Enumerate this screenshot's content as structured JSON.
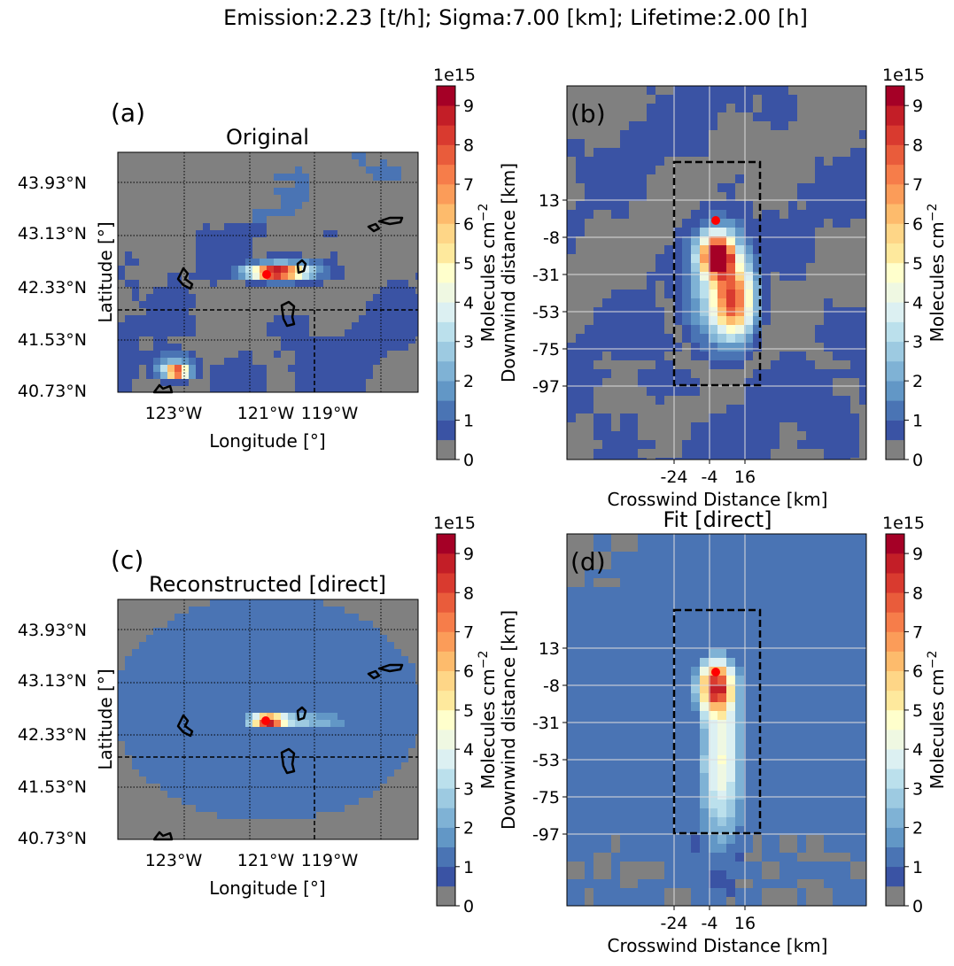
{
  "chart_data": {
    "type": "heatmap",
    "suptitle": "Emission:2.23 [t/h]; Sigma:7.00 [km]; Lifetime:2.00 [h]",
    "colorbar": {
      "label": "Molecules cm",
      "label_exp": "−2",
      "multiplier": "1e15",
      "ticks": [
        "0",
        "1",
        "2",
        "3",
        "4",
        "5",
        "6",
        "7",
        "8",
        "9"
      ],
      "range": [
        0,
        9.5
      ],
      "step": 0.5,
      "colors": [
        "#808080",
        "#3a53a4",
        "#4a74b4",
        "#6297c6",
        "#7fb2d5",
        "#9dcae1",
        "#bbe0ec",
        "#dcf0f2",
        "#eff8e2",
        "#ffffcc",
        "#fee99d",
        "#fed687",
        "#fdbb6c",
        "#fb9c59",
        "#f67d4a",
        "#e95c3b",
        "#d93a2f",
        "#c31e27",
        "#a50026"
      ]
    },
    "panels": [
      {
        "label": "(a)",
        "title": "Original",
        "xlabel": "Longitude [°]",
        "ylabel": "Latitude [°]",
        "xticks": [
          "123°W",
          "121°W",
          "119°W"
        ],
        "yticks": [
          "43.93°N",
          "43.13°N",
          "42.33°N",
          "41.53°N",
          "40.73°N"
        ]
      },
      {
        "label": "(b)",
        "title": "",
        "xlabel": "Crosswind Distance [km]",
        "ylabel": "Downwind distance [km]",
        "xticks": [
          "-24",
          "-4",
          "16"
        ],
        "yticks": [
          "13",
          "-8",
          "-31",
          "-53",
          "-75",
          "-97"
        ]
      },
      {
        "label": "(c)",
        "title": "Reconstructed [direct]",
        "xlabel": "Longitude [°]",
        "ylabel": "Latitude [°]",
        "xticks": [
          "123°W",
          "121°W",
          "119°W"
        ],
        "yticks": [
          "43.93°N",
          "43.13°N",
          "42.33°N",
          "41.53°N",
          "40.73°N"
        ]
      },
      {
        "label": "(d)",
        "title": "Fit [direct]",
        "xlabel": "Crosswind Distance [km]",
        "ylabel": "Downwind distance [km]",
        "xticks": [
          "-24",
          "-4",
          "16"
        ],
        "yticks": [
          "13",
          "-8",
          "-31",
          "-53",
          "-75",
          "-97"
        ]
      }
    ]
  }
}
